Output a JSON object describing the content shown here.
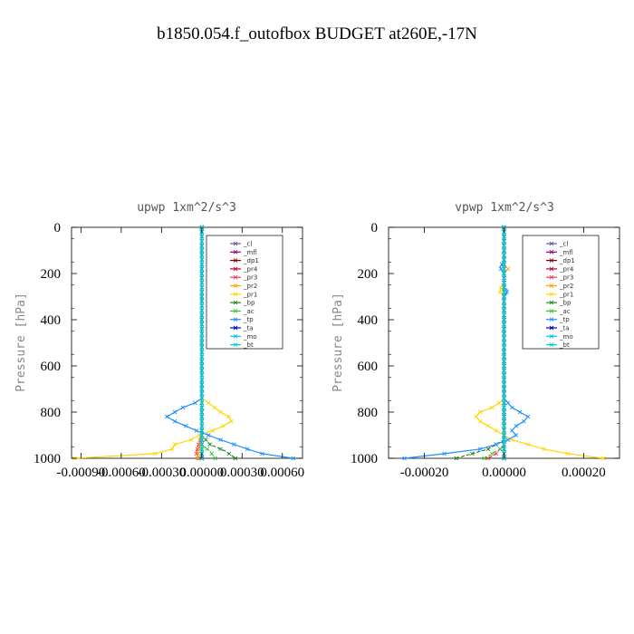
{
  "title": "b1850.054.f_outofbox  BUDGET at260E,-17N",
  "chart_data": [
    {
      "type": "line",
      "title": "upwp   1xm^2/s^3",
      "ylabel": "Pressure [hPa]",
      "xlabel": "",
      "xlim": [
        -0.00097,
        0.00075
      ],
      "ylim": [
        1000,
        0
      ],
      "y_ticks": [
        0,
        200,
        400,
        600,
        800,
        1000
      ],
      "x_ticks": [
        -0.0009,
        -0.0006,
        -0.0003,
        0.0,
        0.0003,
        0.0006
      ],
      "x_tick_labels": [
        "-0.00090",
        "-0.00060",
        "-0.00030",
        "0.00000",
        "0.00030",
        "0.00060"
      ],
      "legend_position": "top-right",
      "series": [
        {
          "name": "_cl",
          "color": "#7a4fa0",
          "y": [
            0,
            1000
          ],
          "x": [
            0.0,
            0.0
          ]
        },
        {
          "name": "_mfl",
          "color": "#8b008b",
          "y": [
            0,
            1000
          ],
          "x": [
            0.0,
            0.0
          ]
        },
        {
          "name": "_dp1",
          "color": "#8b0000",
          "y": [
            0,
            1000
          ],
          "x": [
            0.0,
            0.0
          ]
        },
        {
          "name": "_pr4",
          "color": "#cc0033",
          "y": [
            0,
            1000
          ],
          "x": [
            0.0,
            0.0
          ]
        },
        {
          "name": "_pr3",
          "color": "#ff3366",
          "y": [
            0,
            900,
            950,
            980,
            1000
          ],
          "x": [
            0.0,
            0.0,
            -3e-05,
            -4e-05,
            -2e-05
          ]
        },
        {
          "name": "_pr2",
          "color": "#ffa500",
          "y": [
            0,
            900,
            960,
            1000
          ],
          "x": [
            0.0,
            0.0,
            -2e-05,
            -3e-05
          ]
        },
        {
          "name": "_pr1",
          "color": "#ffd700",
          "y": [
            0,
            740,
            760,
            800,
            820,
            840,
            860,
            880,
            900,
            920,
            940,
            960,
            980,
            1000
          ],
          "x": [
            0.0,
            0.0,
            5e-05,
            0.00014,
            0.0002,
            0.00022,
            0.00016,
            8e-05,
            -2e-05,
            -8e-05,
            -0.0002,
            -0.00022,
            -0.00035,
            -0.00095
          ]
        },
        {
          "name": "_bp",
          "color": "#228b22",
          "y": [
            0,
            900,
            940,
            970,
            1000
          ],
          "x": [
            0.0,
            0.0,
            6e-05,
            0.00018,
            0.00025
          ]
        },
        {
          "name": "_ac",
          "color": "#32cd32",
          "y": [
            0,
            940,
            970,
            1000
          ],
          "x": [
            0.0,
            0.0,
            6e-05,
            0.0001
          ]
        },
        {
          "name": "_tp",
          "color": "#1e90ff",
          "y": [
            0,
            740,
            760,
            780,
            800,
            820,
            840,
            860,
            880,
            900,
            920,
            940,
            960,
            980,
            1000
          ],
          "x": [
            0.0,
            0.0,
            -5e-05,
            -0.00014,
            -0.0002,
            -0.00026,
            -0.0002,
            -0.00012,
            -4e-05,
            5e-05,
            0.00014,
            0.00024,
            0.00034,
            0.00045,
            0.00068
          ]
        },
        {
          "name": "_ta",
          "color": "#0000cd",
          "y": [
            0,
            1000
          ],
          "x": [
            0.0,
            0.0
          ]
        },
        {
          "name": "_mo",
          "color": "#00bfff",
          "y": [
            0,
            1000
          ],
          "x": [
            0.0,
            0.0
          ]
        },
        {
          "name": "_bt",
          "color": "#00ced1",
          "y": [
            0,
            1000
          ],
          "x": [
            0.0,
            0.0
          ]
        }
      ]
    },
    {
      "type": "line",
      "title": "vpwp   1xm^2/s^3",
      "ylabel": "Pressure [hPa]",
      "xlabel": "",
      "xlim": [
        -0.00029,
        0.00029
      ],
      "ylim": [
        1000,
        0
      ],
      "y_ticks": [
        0,
        200,
        400,
        600,
        800,
        1000
      ],
      "x_ticks": [
        -0.0002,
        0.0,
        0.0002
      ],
      "x_tick_labels": [
        "-0.00020",
        "0.00000",
        "0.00020"
      ],
      "legend_position": "top-right",
      "series": [
        {
          "name": "_cl",
          "color": "#7a4fa0",
          "y": [
            0,
            1000
          ],
          "x": [
            0.0,
            0.0
          ]
        },
        {
          "name": "_mfl",
          "color": "#8b008b",
          "y": [
            0,
            1000
          ],
          "x": [
            0.0,
            0.0
          ]
        },
        {
          "name": "_dp1",
          "color": "#8b0000",
          "y": [
            0,
            1000
          ],
          "x": [
            0.0,
            0.0
          ]
        },
        {
          "name": "_pr4",
          "color": "#cc0033",
          "y": [
            0,
            1000
          ],
          "x": [
            0.0,
            0.0
          ]
        },
        {
          "name": "_pr3",
          "color": "#ff3366",
          "y": [
            0,
            940,
            980,
            1000
          ],
          "x": [
            0.0,
            0.0,
            -2e-05,
            -4e-05
          ]
        },
        {
          "name": "_pr2",
          "color": "#ffa500",
          "y": [
            0,
            160,
            180,
            200,
            1000
          ],
          "x": [
            0.0,
            0.0,
            1e-05,
            0.0,
            0.0
          ]
        },
        {
          "name": "_pr1",
          "color": "#ffd700",
          "y": [
            0,
            240,
            260,
            280,
            300,
            740,
            760,
            780,
            800,
            820,
            840,
            860,
            880,
            900,
            920,
            940,
            960,
            980,
            1000
          ],
          "x": [
            0.0,
            0.0,
            -8e-06,
            -1e-05,
            0.0,
            0.0,
            -1.2e-05,
            -3e-05,
            -6e-05,
            -7e-05,
            -6e-05,
            -4e-05,
            -2e-05,
            0.0,
            2e-05,
            6e-05,
            0.0001,
            0.00016,
            0.00025
          ]
        },
        {
          "name": "_bp",
          "color": "#228b22",
          "y": [
            0,
            920,
            960,
            990,
            1000
          ],
          "x": [
            0.0,
            0.0,
            -4e-05,
            -0.0001,
            -0.00012
          ]
        },
        {
          "name": "_ac",
          "color": "#32cd32",
          "y": [
            0,
            950,
            980,
            1000
          ],
          "x": [
            0.0,
            0.0,
            -3e-05,
            -5e-05
          ]
        },
        {
          "name": "_tp",
          "color": "#1e90ff",
          "y": [
            0,
            150,
            170,
            190,
            200,
            260,
            270,
            290,
            300,
            740,
            760,
            780,
            800,
            820,
            840,
            860,
            880,
            900,
            920,
            940,
            960,
            980,
            1000
          ],
          "x": [
            0.0,
            0.0,
            -1e-05,
            -5e-06,
            0.0,
            0.0,
            8e-06,
            6e-06,
            0.0,
            0.0,
            1e-05,
            2e-05,
            4e-05,
            6e-05,
            5e-05,
            3e-05,
            2e-05,
            3e-05,
            1e-05,
            -2e-05,
            -6e-05,
            -0.00015,
            -0.00025
          ]
        },
        {
          "name": "_ta",
          "color": "#0000cd",
          "y": [
            0,
            1000
          ],
          "x": [
            0.0,
            0.0
          ]
        },
        {
          "name": "_mo",
          "color": "#00bfff",
          "y": [
            0,
            1000
          ],
          "x": [
            0.0,
            0.0
          ]
        },
        {
          "name": "_bt",
          "color": "#00ced1",
          "y": [
            0,
            1000
          ],
          "x": [
            0.0,
            0.0
          ]
        }
      ]
    }
  ]
}
